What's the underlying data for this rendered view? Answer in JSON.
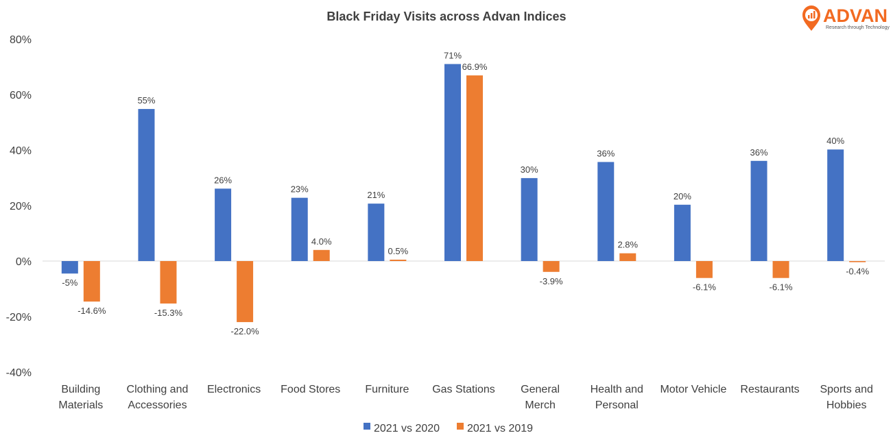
{
  "colors": {
    "series1": "#4472c4",
    "series2": "#ed7d31",
    "axis": "#d9d9d9",
    "text": "#404040",
    "brand": "#f26a21"
  },
  "logo": {
    "name": "ADVAN",
    "tagline": "Research through Technology"
  },
  "chart_data": {
    "type": "bar",
    "title": "Black Friday Visits across Advan Indices",
    "xlabel": "",
    "ylabel": "",
    "ylim": [
      -40,
      80
    ],
    "yticks": [
      80,
      60,
      40,
      20,
      0,
      -20,
      -40
    ],
    "ytick_labels": [
      "80%",
      "60%",
      "40%",
      "20%",
      "0%",
      "-20%",
      "-40%"
    ],
    "categories": [
      [
        "Building",
        "Materials"
      ],
      [
        "Clothing and",
        "Accessories"
      ],
      [
        "Electronics"
      ],
      [
        "Food Stores"
      ],
      [
        "Furniture"
      ],
      [
        "Gas Stations"
      ],
      [
        "General",
        "Merch"
      ],
      [
        "Health and",
        "Personal"
      ],
      [
        "Motor Vehicle"
      ],
      [
        "Restaurants"
      ],
      [
        "Sports and",
        "Hobbies"
      ]
    ],
    "series": [
      {
        "name": "2021 vs 2020",
        "values": [
          -4.5,
          54.8,
          26.1,
          22.8,
          20.7,
          71.0,
          29.9,
          35.7,
          20.3,
          36.1,
          40.2
        ],
        "labels": [
          "-5%",
          "55%",
          "26%",
          "23%",
          "21%",
          "71%",
          "30%",
          "36%",
          "20%",
          "36%",
          "40%"
        ]
      },
      {
        "name": "2021 vs 2019",
        "values": [
          -14.6,
          -15.3,
          -22.0,
          4.0,
          0.5,
          66.9,
          -3.9,
          2.8,
          -6.1,
          -6.1,
          -0.4
        ],
        "labels": [
          "-14.6%",
          "-15.3%",
          "-22.0%",
          "4.0%",
          "0.5%",
          "66.9%",
          "-3.9%",
          "2.8%",
          "-6.1%",
          "-6.1%",
          "-0.4%"
        ]
      }
    ],
    "grid": false,
    "legend": "bottom"
  }
}
